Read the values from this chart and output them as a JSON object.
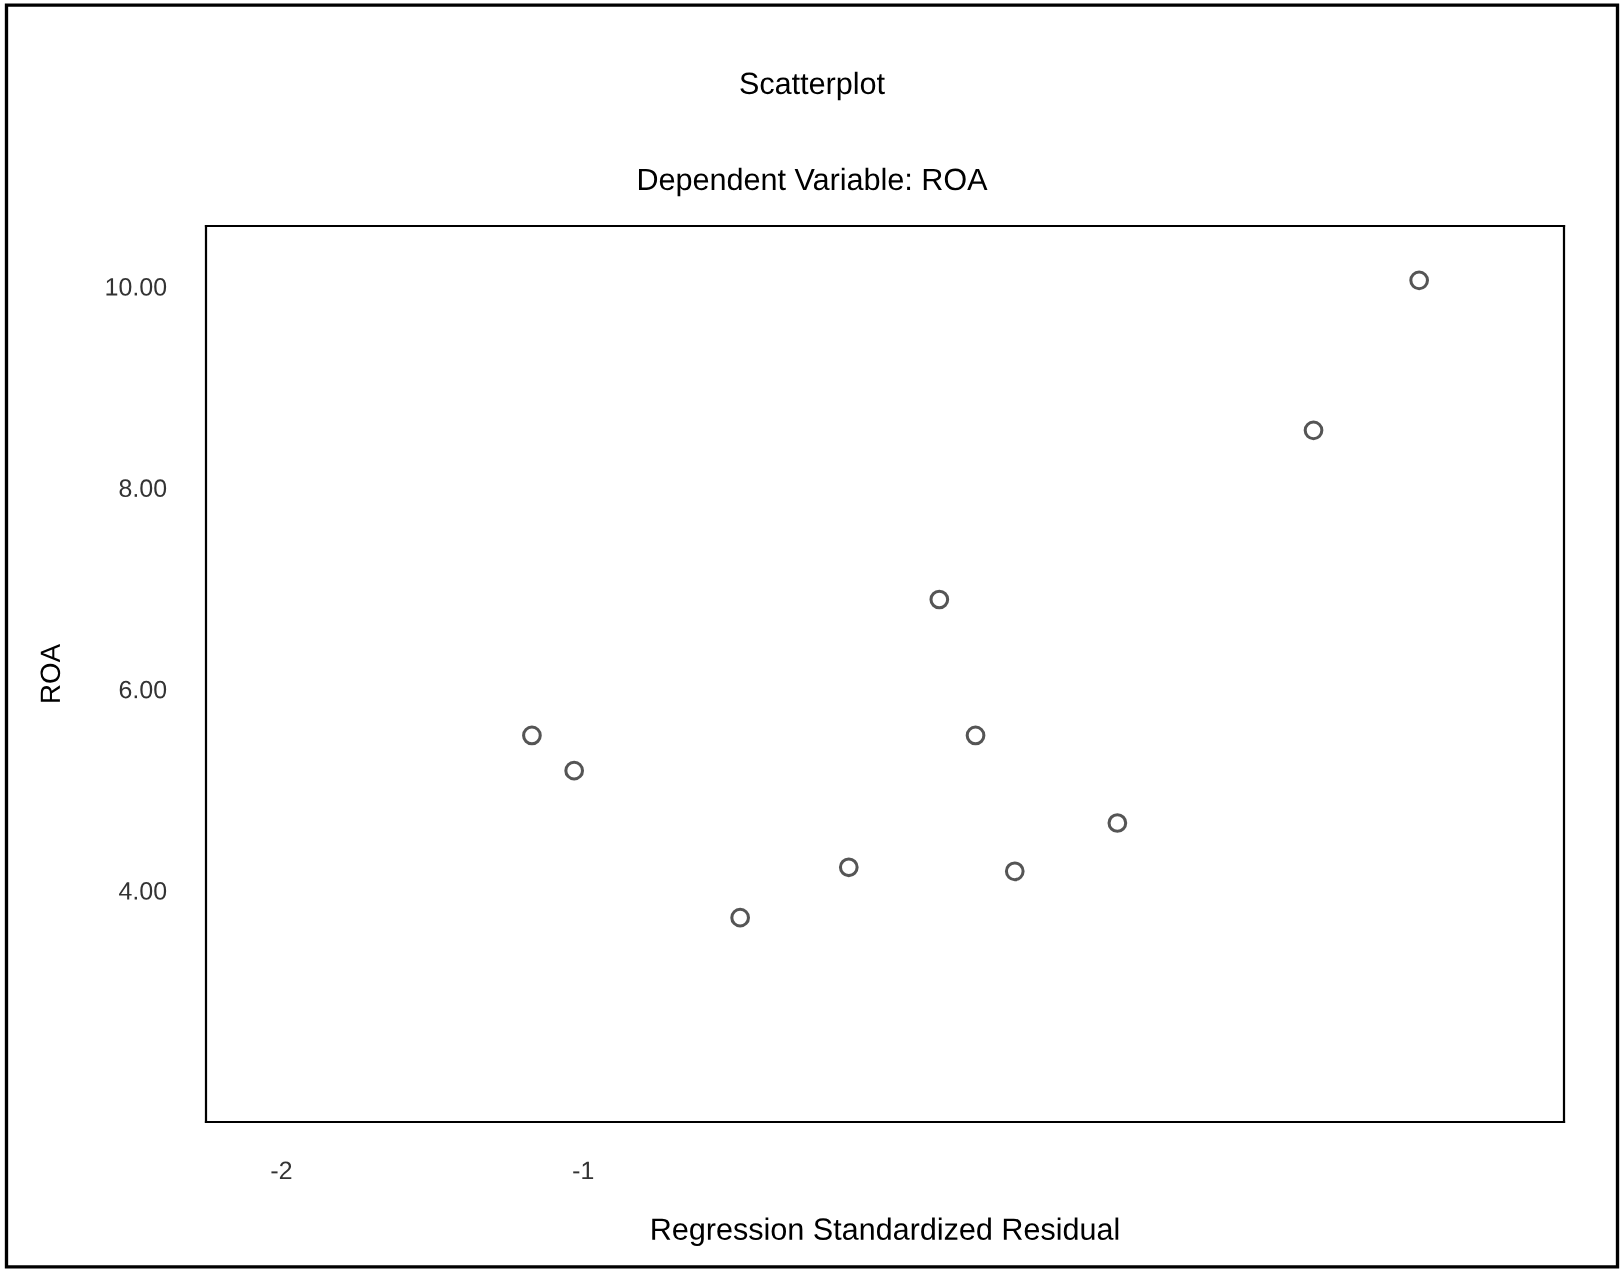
{
  "chart_data": {
    "type": "scatter",
    "title": "Scatterplot",
    "subtitle": "Dependent Variable: ROA",
    "xlabel": "Regression Standardized Residual",
    "ylabel": "ROA",
    "x": [
      -1.17,
      -1.03,
      -0.48,
      -0.12,
      0.18,
      0.3,
      0.43,
      0.77,
      1.42,
      1.77
    ],
    "series": [
      {
        "color": "#555555",
        "values": [
          5.54,
          5.19,
          3.73,
          4.23,
          6.89,
          5.54,
          4.19,
          4.67,
          8.57,
          10.06
        ]
      }
    ],
    "xlim": [
      -2.25,
      2.25
    ],
    "xticks": [
      -2,
      -1
    ],
    "ylim": [
      1.7,
      10.6
    ],
    "yticks": [
      {
        "value": 4,
        "label": "4.00"
      },
      {
        "value": 6,
        "label": "6.00"
      },
      {
        "value": 8,
        "label": "8.00"
      },
      {
        "value": 10,
        "label": "10.00"
      }
    ],
    "marker": "circle",
    "grid": false,
    "legend": false
  }
}
